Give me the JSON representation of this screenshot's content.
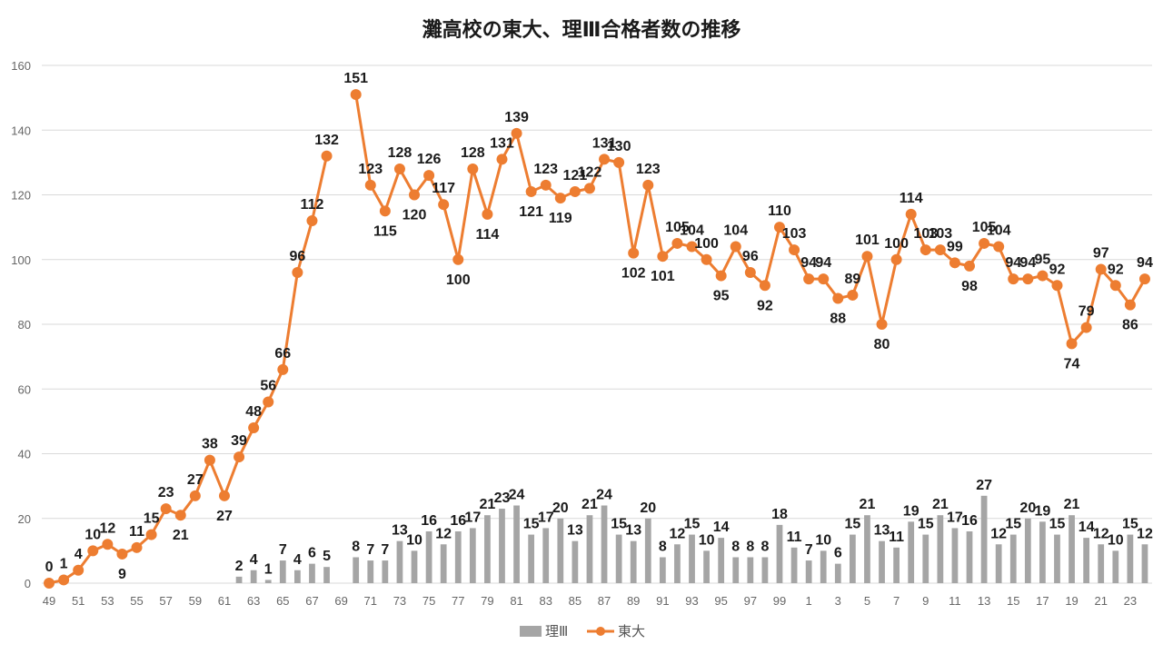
{
  "chart_data": {
    "type": "bar+line",
    "title": "灘高校の東大、理Ⅲ合格者数の推移",
    "ylim": [
      0,
      160
    ],
    "yticks": [
      0,
      20,
      40,
      60,
      80,
      100,
      120,
      140,
      160
    ],
    "x_tick_labels": [
      "49",
      "51",
      "53",
      "55",
      "57",
      "59",
      "61",
      "63",
      "65",
      "67",
      "69",
      "71",
      "73",
      "75",
      "77",
      "79",
      "81",
      "83",
      "85",
      "87",
      "89",
      "91",
      "93",
      "95",
      "97",
      "99",
      "1",
      "3",
      "5",
      "7",
      "9",
      "11",
      "13",
      "15",
      "17",
      "19",
      "21",
      "23"
    ],
    "categories": [
      "49",
      "50",
      "51",
      "52",
      "53",
      "54",
      "55",
      "56",
      "57",
      "58",
      "59",
      "60",
      "61",
      "62",
      "63",
      "64",
      "65",
      "66",
      "67",
      "68",
      "69",
      "70",
      "71",
      "72",
      "73",
      "74",
      "75",
      "76",
      "77",
      "78",
      "79",
      "80",
      "81",
      "82",
      "83",
      "84",
      "85",
      "86",
      "87",
      "88",
      "89",
      "90",
      "91",
      "92",
      "93",
      "94",
      "95",
      "96",
      "97",
      "98",
      "99",
      "0",
      "1",
      "2",
      "3",
      "4",
      "5",
      "6",
      "7",
      "8",
      "9",
      "10",
      "11",
      "12",
      "13",
      "14",
      "15",
      "16",
      "17",
      "18",
      "19",
      "20",
      "21",
      "22",
      "23",
      "24"
    ],
    "series": [
      {
        "name": "理Ⅲ",
        "kind": "bar",
        "color": "#a5a5a5",
        "values": [
          null,
          null,
          null,
          null,
          null,
          null,
          null,
          null,
          null,
          null,
          null,
          null,
          null,
          2,
          4,
          1,
          7,
          4,
          6,
          5,
          null,
          8,
          7,
          7,
          13,
          10,
          16,
          12,
          16,
          17,
          21,
          23,
          24,
          15,
          17,
          20,
          13,
          21,
          24,
          15,
          13,
          20,
          8,
          12,
          15,
          10,
          14,
          8,
          8,
          8,
          18,
          11,
          7,
          10,
          6,
          15,
          21,
          13,
          11,
          19,
          15,
          21,
          17,
          16,
          27,
          12,
          15,
          20,
          19,
          15,
          21,
          14,
          12,
          10,
          15,
          12
        ]
      },
      {
        "name": "東大",
        "kind": "line",
        "color": "#ed7d31",
        "values": [
          0,
          1,
          4,
          10,
          12,
          9,
          11,
          15,
          23,
          21,
          27,
          38,
          27,
          39,
          48,
          56,
          66,
          96,
          112,
          132,
          null,
          151,
          123,
          115,
          128,
          120,
          126,
          117,
          100,
          128,
          114,
          131,
          139,
          121,
          123,
          119,
          121,
          122,
          131,
          130,
          102,
          123,
          101,
          105,
          104,
          100,
          95,
          104,
          96,
          92,
          110,
          103,
          94,
          94,
          88,
          89,
          101,
          80,
          100,
          114,
          103,
          103,
          99,
          98,
          105,
          104,
          94,
          94,
          95,
          92,
          74,
          79,
          97,
          92,
          86,
          94
        ]
      }
    ]
  }
}
